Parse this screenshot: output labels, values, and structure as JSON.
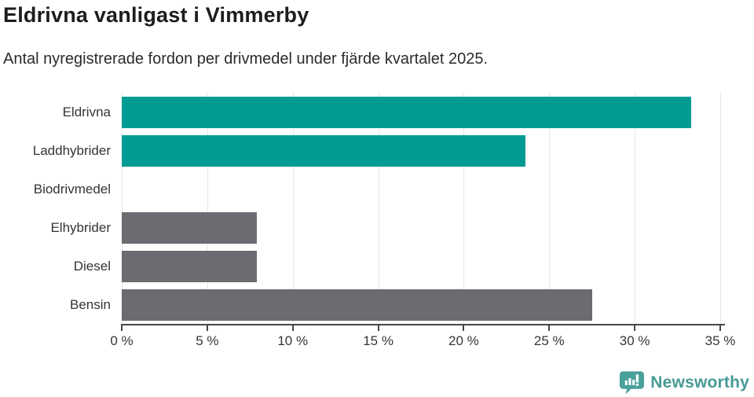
{
  "header": {
    "title": "Eldrivna vanligast i Vimmerby",
    "subtitle": "Antal nyregistrerade fordon per drivmedel under fjärde kvartalet 2025."
  },
  "chart_data": {
    "type": "bar",
    "orientation": "horizontal",
    "title": "Eldrivna vanligast i Vimmerby",
    "subtitle": "Antal nyregistrerade fordon per drivmedel under fjärde kvartalet 2025.",
    "categories": [
      "Eldrivna",
      "Laddhybrider",
      "Biodrivmedel",
      "Elhybrider",
      "Diesel",
      "Bensin"
    ],
    "values": [
      33.3,
      23.6,
      0,
      7.9,
      7.9,
      27.5
    ],
    "bar_colors": [
      "#009c93",
      "#009c93",
      "#009c93",
      "#6b6b71",
      "#6b6b71",
      "#6b6b71"
    ],
    "xlabel": "",
    "ylabel": "",
    "xlim": [
      0,
      35
    ],
    "x_ticks": [
      0,
      5,
      10,
      15,
      20,
      25,
      30,
      35
    ],
    "x_tick_suffix": " %",
    "grid": true,
    "legend": "none"
  },
  "footer": {
    "brand": "Newsworthy",
    "brand_color": "#479a96",
    "icon": "newsworthy-logo-icon",
    "icon_color": "#4aa09a"
  },
  "colors": {
    "teal_bar": "#009c93",
    "gray_bar": "#6b6b71",
    "gridline": "#e6e6e6",
    "axis": "#474747",
    "title_text": "#1d1d1d",
    "background": "#ffffff"
  }
}
